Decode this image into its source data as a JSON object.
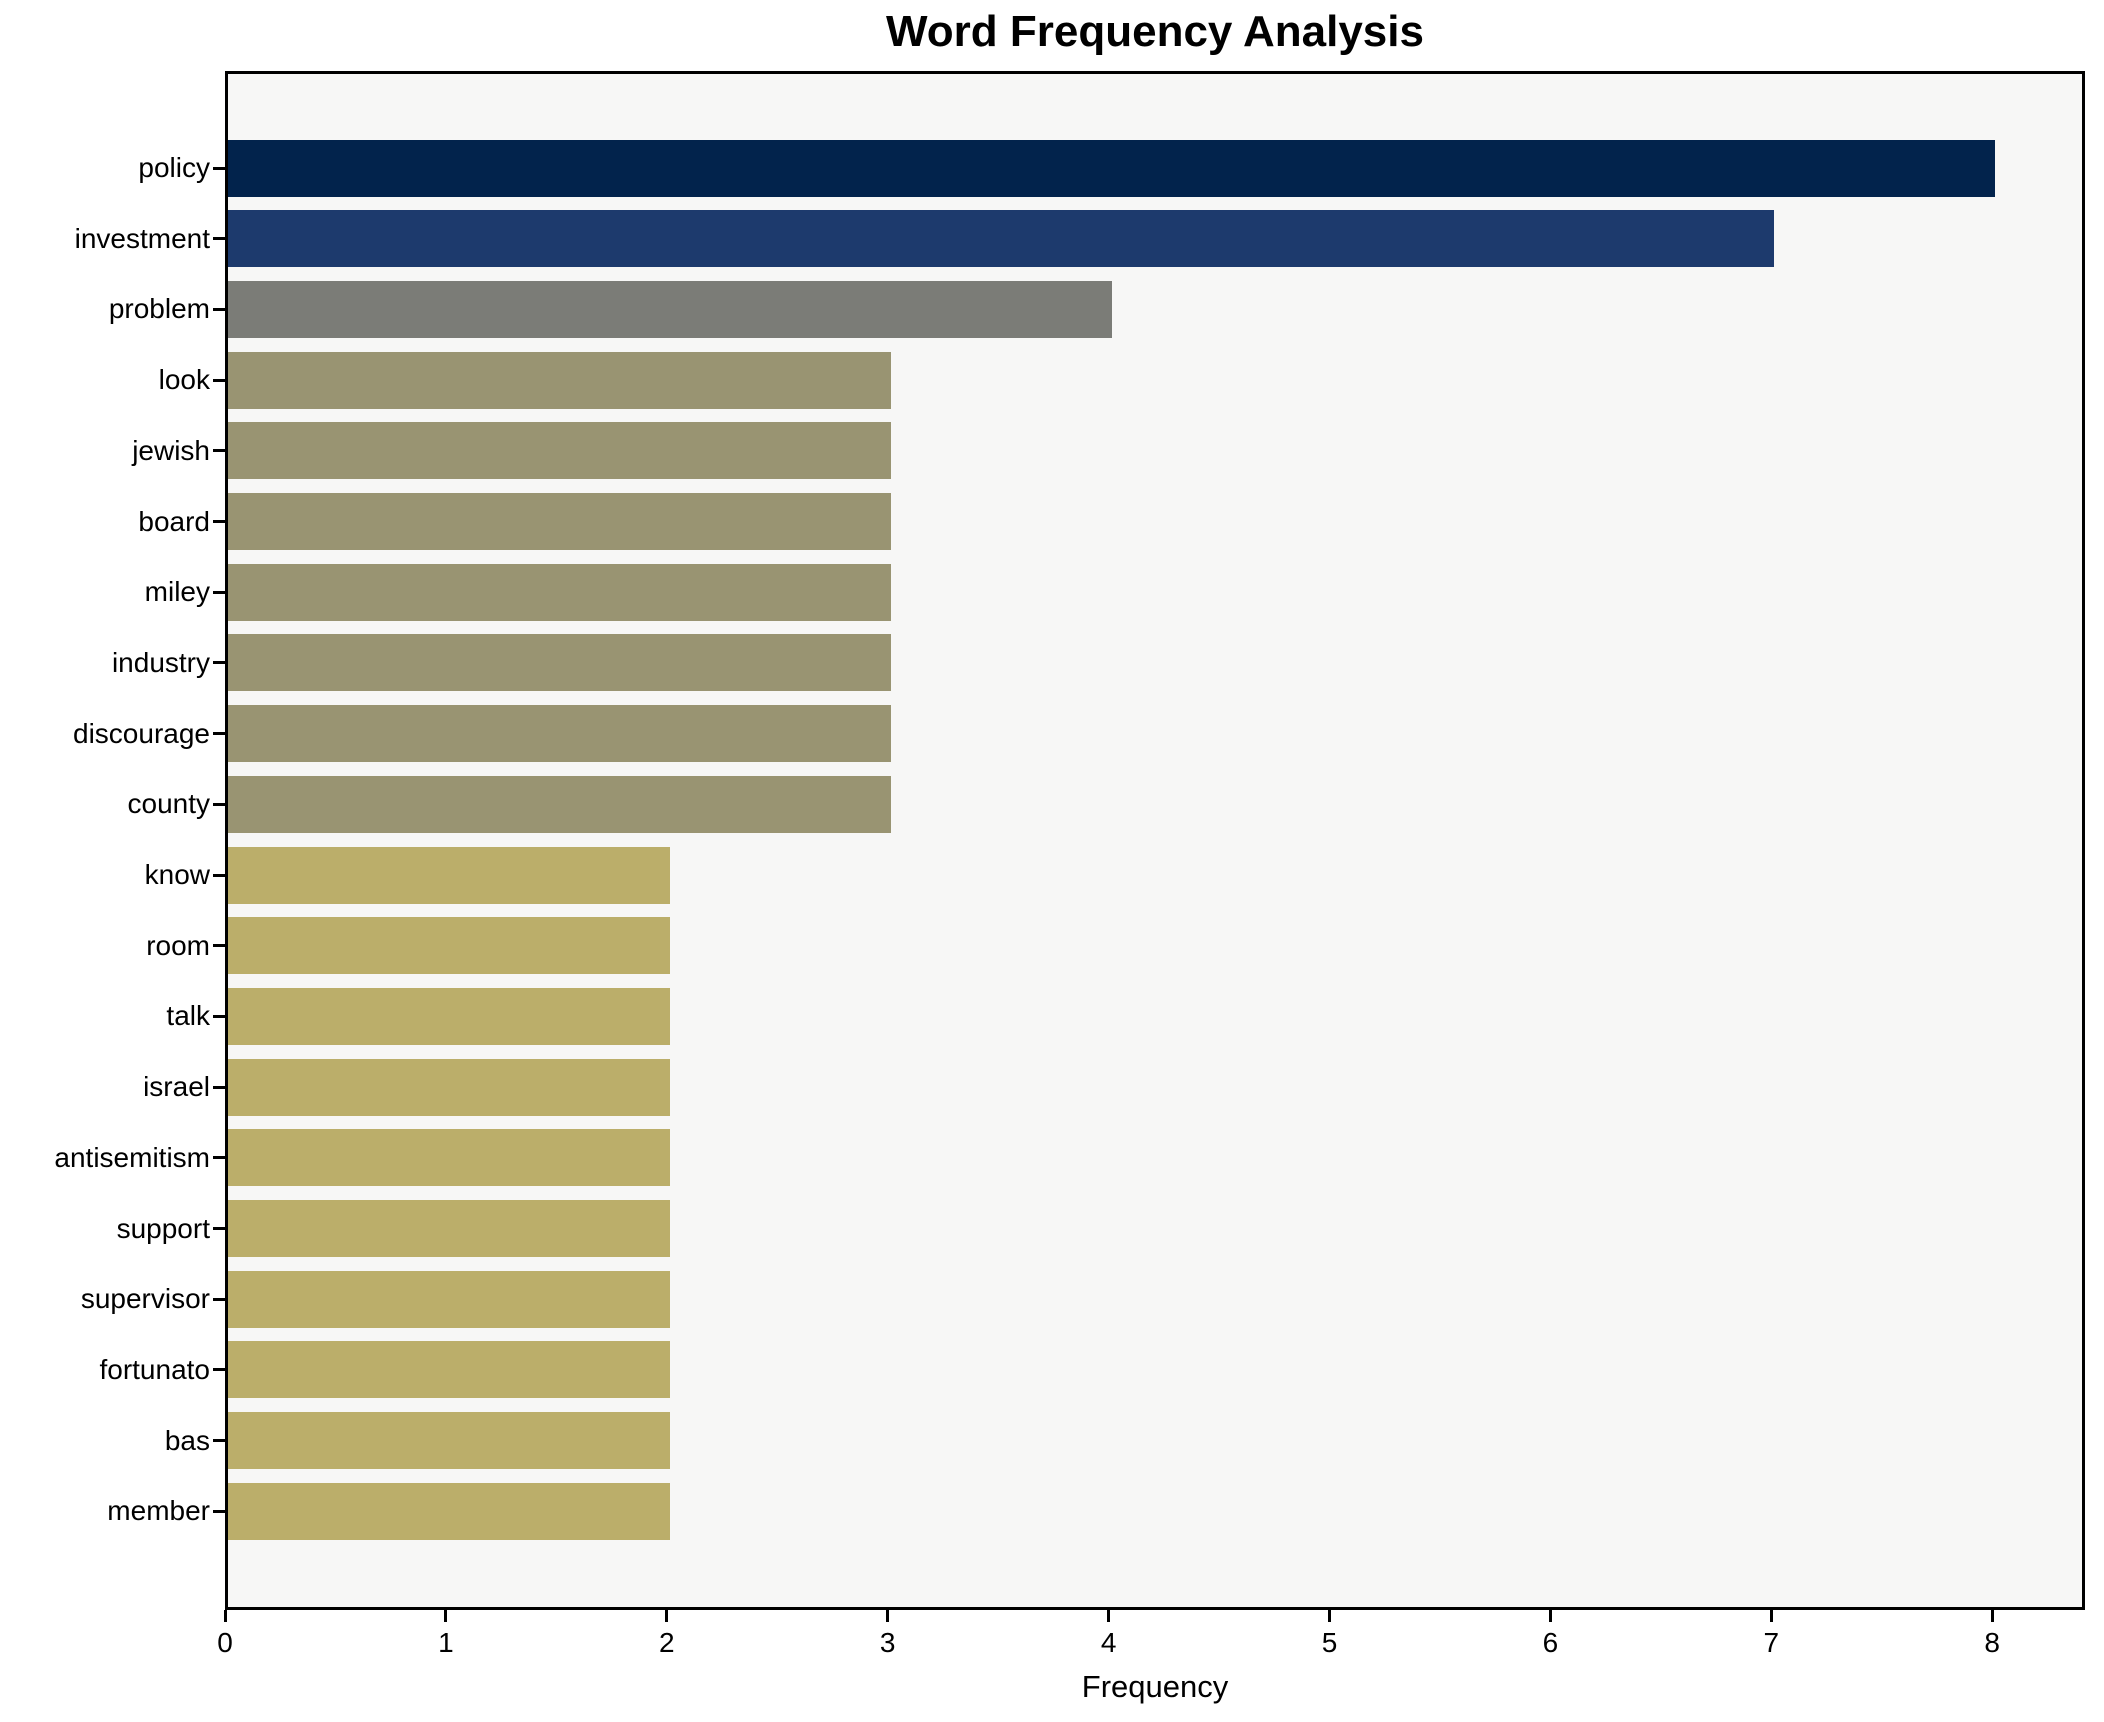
{
  "chart_data": {
    "type": "bar",
    "orientation": "horizontal",
    "title": "Word Frequency Analysis",
    "xlabel": "Frequency",
    "ylabel": "",
    "categories": [
      "policy",
      "investment",
      "problem",
      "look",
      "jewish",
      "board",
      "miley",
      "industry",
      "discourage",
      "county",
      "know",
      "room",
      "talk",
      "israel",
      "antisemitism",
      "support",
      "supervisor",
      "fortunato",
      "bas",
      "member"
    ],
    "values": [
      8,
      7,
      4,
      3,
      3,
      3,
      3,
      3,
      3,
      3,
      2,
      2,
      2,
      2,
      2,
      2,
      2,
      2,
      2,
      2
    ],
    "bar_colors": [
      "#02234c",
      "#1d3a6d",
      "#7b7c77",
      "#999472",
      "#999472",
      "#999472",
      "#999472",
      "#999472",
      "#999472",
      "#999472",
      "#bbae6a",
      "#bbae6a",
      "#bbae6a",
      "#bbae6a",
      "#bbae6a",
      "#bbae6a",
      "#bbae6a",
      "#bbae6a",
      "#bbae6a",
      "#bbae6a"
    ],
    "xticks": [
      "0",
      "1",
      "2",
      "3",
      "4",
      "5",
      "6",
      "7",
      "8"
    ],
    "xlim": [
      0,
      8.42
    ],
    "grid": false,
    "legend": "none",
    "colors": {
      "plot_background": "#f7f7f6",
      "figure_background": "#ffffff",
      "spine": "#000000",
      "text": "#000000"
    }
  }
}
